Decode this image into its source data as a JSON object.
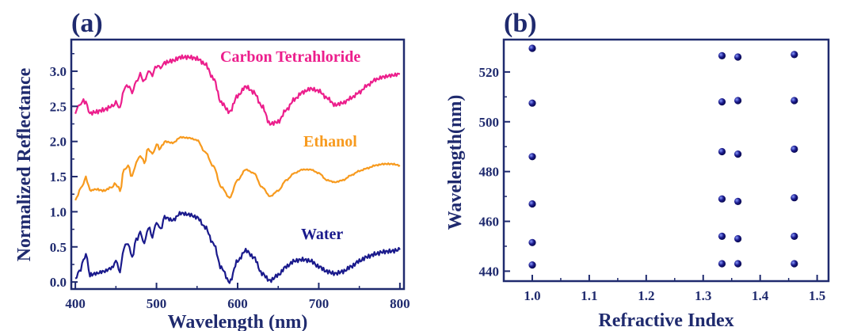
{
  "chart_data": [
    {
      "panel": "(a)",
      "type": "line",
      "xlabel": "Wavelength (nm)",
      "ylabel": "Normalized Reflectance",
      "xlim": [
        395,
        805
      ],
      "ylim": [
        -0.1,
        3.45
      ],
      "xticks": [
        400,
        500,
        600,
        700,
        800
      ],
      "yticks": [
        0.0,
        0.5,
        1.0,
        1.5,
        2.0,
        2.5,
        3.0
      ],
      "ytick_labels": [
        "0.0",
        "0.5",
        "1.0",
        "1.5",
        "2.0",
        "2.5",
        "3.0"
      ],
      "grid": false,
      "series": [
        {
          "name": "Water",
          "color": "#1a1a8c",
          "x": [
            400,
            405,
            410,
            413,
            418,
            425,
            435,
            445,
            450,
            455,
            460,
            465,
            470,
            475,
            480,
            485,
            490,
            495,
            500,
            505,
            510,
            520,
            530,
            540,
            550,
            560,
            570,
            580,
            590,
            600,
            610,
            620,
            630,
            640,
            650,
            660,
            670,
            680,
            690,
            700,
            710,
            720,
            730,
            740,
            750,
            760,
            770,
            780,
            790,
            800
          ],
          "y": [
            0.05,
            0.15,
            0.3,
            0.4,
            0.1,
            0.12,
            0.15,
            0.2,
            0.3,
            0.15,
            0.5,
            0.55,
            0.35,
            0.6,
            0.7,
            0.55,
            0.78,
            0.65,
            0.85,
            0.75,
            0.92,
            0.88,
            0.98,
            0.96,
            0.92,
            0.78,
            0.55,
            0.2,
            0.0,
            0.3,
            0.45,
            0.35,
            0.12,
            0.02,
            0.1,
            0.22,
            0.3,
            0.32,
            0.3,
            0.22,
            0.15,
            0.12,
            0.15,
            0.22,
            0.3,
            0.36,
            0.4,
            0.43,
            0.44,
            0.46
          ]
        },
        {
          "name": "Ethanol",
          "color": "#f79a1e",
          "x": [
            400,
            405,
            410,
            413,
            418,
            425,
            435,
            445,
            450,
            455,
            460,
            465,
            470,
            475,
            480,
            485,
            490,
            495,
            500,
            505,
            510,
            520,
            530,
            540,
            550,
            560,
            570,
            580,
            590,
            600,
            610,
            620,
            630,
            640,
            650,
            660,
            670,
            680,
            690,
            700,
            710,
            720,
            730,
            740,
            750,
            760,
            770,
            780,
            790,
            800
          ],
          "y": [
            1.15,
            1.3,
            1.4,
            1.5,
            1.3,
            1.32,
            1.3,
            1.35,
            1.4,
            1.3,
            1.6,
            1.65,
            1.5,
            1.7,
            1.8,
            1.7,
            1.9,
            1.82,
            1.95,
            1.9,
            2.0,
            1.98,
            2.06,
            2.05,
            2.02,
            1.85,
            1.65,
            1.35,
            1.2,
            1.45,
            1.6,
            1.55,
            1.35,
            1.22,
            1.3,
            1.45,
            1.55,
            1.6,
            1.6,
            1.55,
            1.45,
            1.42,
            1.45,
            1.52,
            1.58,
            1.62,
            1.66,
            1.68,
            1.68,
            1.66
          ]
        },
        {
          "name": "Carbon Tetrahloride",
          "color": "#ec1e8c",
          "x": [
            400,
            405,
            410,
            413,
            418,
            425,
            435,
            445,
            450,
            455,
            460,
            465,
            470,
            475,
            480,
            485,
            490,
            495,
            500,
            505,
            510,
            520,
            530,
            540,
            550,
            560,
            570,
            580,
            590,
            600,
            610,
            620,
            630,
            640,
            650,
            660,
            670,
            680,
            690,
            700,
            710,
            720,
            730,
            740,
            750,
            760,
            770,
            780,
            790,
            800
          ],
          "y": [
            2.42,
            2.52,
            2.58,
            2.55,
            2.4,
            2.42,
            2.45,
            2.5,
            2.55,
            2.48,
            2.75,
            2.8,
            2.7,
            2.85,
            2.95,
            2.85,
            3.0,
            2.95,
            3.08,
            3.05,
            3.12,
            3.15,
            3.2,
            3.2,
            3.18,
            3.1,
            2.9,
            2.55,
            2.42,
            2.65,
            2.78,
            2.7,
            2.5,
            2.25,
            2.28,
            2.45,
            2.6,
            2.7,
            2.75,
            2.72,
            2.62,
            2.52,
            2.55,
            2.62,
            2.7,
            2.8,
            2.88,
            2.92,
            2.94,
            2.96
          ]
        }
      ]
    },
    {
      "panel": "(b)",
      "type": "scatter",
      "xlabel": "Refractive Index",
      "ylabel": "Wavelength(nm)",
      "xlim": [
        0.95,
        1.52
      ],
      "ylim": [
        436,
        533
      ],
      "xticks": [
        1.0,
        1.1,
        1.2,
        1.3,
        1.4,
        1.5
      ],
      "xtick_labels": [
        "1.0",
        "1.1",
        "1.2",
        "1.3",
        "1.4",
        "1.5"
      ],
      "yticks": [
        440,
        460,
        480,
        500,
        520
      ],
      "grid": false,
      "color": "#1a1a8c",
      "points": [
        {
          "x": 1.0,
          "y": 529.5
        },
        {
          "x": 1.0,
          "y": 507.5
        },
        {
          "x": 1.0,
          "y": 486.0
        },
        {
          "x": 1.0,
          "y": 467.0
        },
        {
          "x": 1.0,
          "y": 451.5
        },
        {
          "x": 1.0,
          "y": 442.5
        },
        {
          "x": 1.333,
          "y": 526.5
        },
        {
          "x": 1.333,
          "y": 508.0
        },
        {
          "x": 1.333,
          "y": 488.0
        },
        {
          "x": 1.333,
          "y": 469.0
        },
        {
          "x": 1.333,
          "y": 454.0
        },
        {
          "x": 1.333,
          "y": 443.0
        },
        {
          "x": 1.361,
          "y": 526.0
        },
        {
          "x": 1.361,
          "y": 508.5
        },
        {
          "x": 1.361,
          "y": 487.0
        },
        {
          "x": 1.361,
          "y": 468.0
        },
        {
          "x": 1.361,
          "y": 453.0
        },
        {
          "x": 1.361,
          "y": 443.0
        },
        {
          "x": 1.46,
          "y": 527.0
        },
        {
          "x": 1.46,
          "y": 508.5
        },
        {
          "x": 1.46,
          "y": 489.0
        },
        {
          "x": 1.46,
          "y": 469.5
        },
        {
          "x": 1.46,
          "y": 454.0
        },
        {
          "x": 1.46,
          "y": 443.0
        }
      ]
    }
  ]
}
